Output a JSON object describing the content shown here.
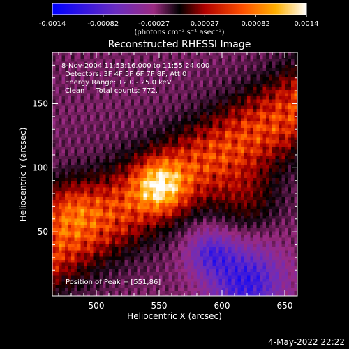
{
  "chart_data": {
    "type": "heatmap",
    "title": "Reconstructed RHESSI Image",
    "xlabel": "Heliocentric X (arcsec)",
    "ylabel": "Heliocentric Y (arcsec)",
    "xlim": [
      465,
      660
    ],
    "ylim": [
      0,
      190
    ],
    "x_ticks": [
      500,
      550,
      600,
      650
    ],
    "y_ticks": [
      50,
      100,
      150
    ],
    "colorbar": {
      "min": -0.0014,
      "max": 0.0014,
      "ticks": [
        "-0.0014",
        "-0.00082",
        "-0.00027",
        "0.00027",
        "0.00082",
        "0.0014"
      ],
      "label": "(photons cm⁻² s⁻¹ asec⁻²)",
      "colormap": [
        "#0000ff",
        "#6a2cc0",
        "#9b2a80",
        "#000000",
        "#b00000",
        "#ff5000",
        "#ffb000",
        "#ffffff"
      ]
    },
    "annotations": [
      "8-Nov-2004 11:53:16.000 to 11:55:24.000",
      "Detectors: 3F 4F 5F 6F 7F 8F, Att 0",
      "Energy Range: 12.0 - 25.0 keV",
      "Clean     Total counts: 772."
    ],
    "peak_label": "Position of Peak = [551,86]",
    "peak": [
      551,
      86
    ]
  },
  "footer": {
    "date": "4-May-2022 22:22"
  }
}
